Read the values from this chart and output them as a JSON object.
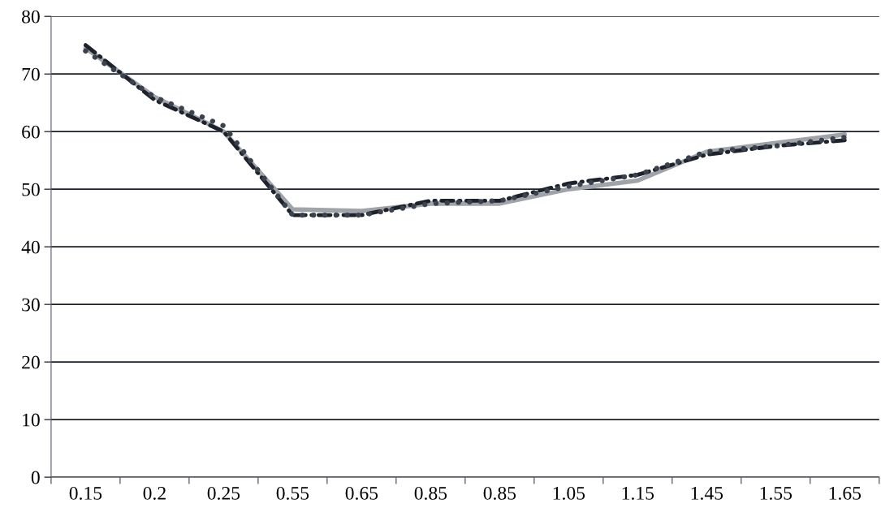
{
  "chart_data": {
    "type": "line",
    "categories": [
      "0.15",
      "0.2",
      "0.25",
      "0.55",
      "0.65",
      "0.85",
      "0.85",
      "1.05",
      "1.15",
      "1.45",
      "1.55",
      "1.65"
    ],
    "series": [
      {
        "color": "#a0a4a8",
        "line_style": "solid",
        "values": [
          74.5,
          66,
          60,
          46.5,
          46.2,
          47.5,
          47.5,
          50,
          51.5,
          56.5,
          58,
          59.5
        ]
      },
      {
        "color": "#1e222a",
        "line_style": "dashdot",
        "values": [
          75,
          65.5,
          60,
          45.5,
          45.5,
          48,
          48,
          51,
          52.5,
          56,
          57.5,
          58.5
        ]
      },
      {
        "color": "#3a4250",
        "line_style": "dotted",
        "values": [
          74,
          66,
          61,
          45.5,
          45.5,
          47.5,
          48,
          50.5,
          52.5,
          56.5,
          57.5,
          59
        ]
      }
    ],
    "ylim": [
      0,
      80
    ],
    "yticks": [
      0,
      10,
      20,
      30,
      40,
      50,
      60,
      70,
      80
    ],
    "grid": "y",
    "marker": "none"
  }
}
